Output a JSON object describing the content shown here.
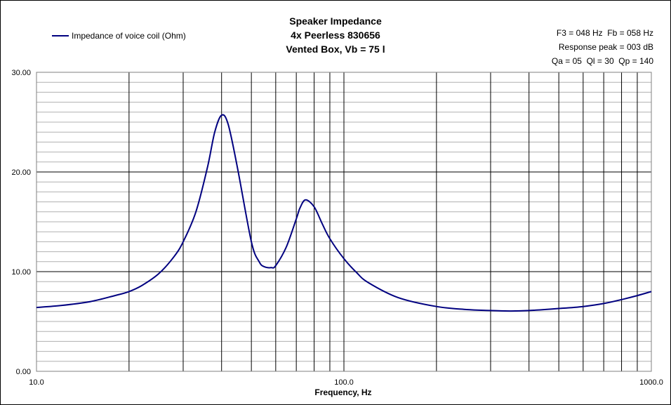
{
  "chart_data": {
    "type": "line",
    "title": [
      "Speaker Impedance",
      "4x Peerless 830656",
      "Vented Box, Vb = 75 l"
    ],
    "annotations": [
      "F3 = 048 Hz  Fb = 058 Hz",
      "Response peak = 003 dB",
      "Qa = 05  Ql = 30  Qp = 140"
    ],
    "xlabel": "Frequency, Hz",
    "ylabel": "",
    "xscale": "log",
    "xlim": [
      10,
      1000
    ],
    "ylim": [
      0,
      30
    ],
    "grid": true,
    "legend_position": "top-left",
    "x_tick_labels": [
      "10.0",
      "100.0",
      "1000.0"
    ],
    "y_tick_labels": [
      "0.00",
      "10.00",
      "20.00",
      "30.00"
    ],
    "series": [
      {
        "name": "Impedance of voice coil (Ohm)",
        "color": "#000080",
        "x": [
          10,
          12,
          15,
          18,
          20,
          22,
          25,
          28,
          30,
          33,
          36,
          38,
          40,
          42,
          45,
          50,
          53,
          55,
          58,
          60,
          65,
          70,
          72,
          75,
          80,
          85,
          90,
          100,
          110,
          120,
          150,
          200,
          250,
          300,
          350,
          400,
          500,
          600,
          700,
          800,
          900,
          1000
        ],
        "y": [
          6.4,
          6.6,
          7.0,
          7.6,
          8.0,
          8.6,
          9.8,
          11.5,
          13.0,
          16.0,
          20.5,
          24.0,
          25.7,
          24.8,
          20.5,
          13.0,
          11.0,
          10.5,
          10.4,
          10.6,
          12.5,
          15.3,
          16.4,
          17.2,
          16.5,
          14.8,
          13.3,
          11.3,
          9.9,
          8.9,
          7.4,
          6.5,
          6.2,
          6.1,
          6.05,
          6.1,
          6.3,
          6.5,
          6.8,
          7.2,
          7.6,
          8.0
        ]
      }
    ]
  }
}
